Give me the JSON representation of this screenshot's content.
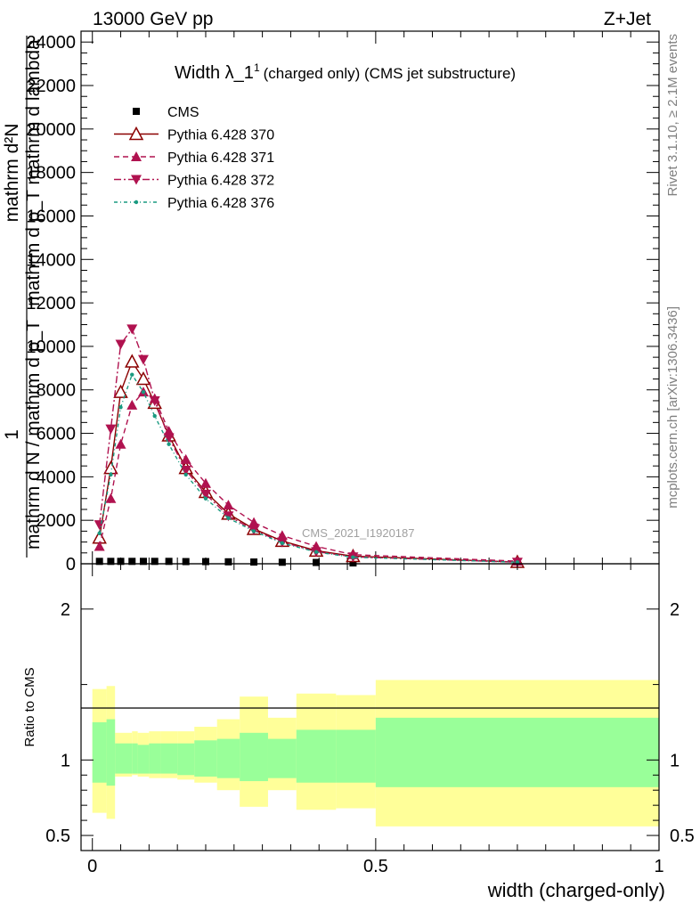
{
  "header": {
    "left": "13000 GeV pp",
    "right": "Z+Jet"
  },
  "side": {
    "rivet": "Rivet 3.1.10, ≥ 2.1M events",
    "mcplots": "mcplots.cern.ch [arXiv:1306.3436]"
  },
  "watermark": "CMS_2021_I1920187",
  "chart_data": [
    {
      "type": "line",
      "title": "Width λ_1",
      "title_sup": "1",
      "title_suffix": "(charged only) (CMS jet substructure)",
      "ylabel_top": "mathrm d²N",
      "ylabel_mid": "mathrm d p_T mathrm d lambda",
      "ylabel_num": "1",
      "ylabel_den": "mathrm d N / mathrm d p_T",
      "ylim": [
        0,
        24500
      ],
      "xlim": [
        -0.02,
        1.0
      ],
      "y_ticks": [
        0,
        2000,
        4000,
        6000,
        8000,
        10000,
        12000,
        14000,
        16000,
        18000,
        20000,
        22000,
        24000
      ],
      "y_tick_labels": [
        "0",
        "2000",
        "4000",
        "6000",
        "8000",
        "10000",
        "12000",
        "14000",
        "16000",
        "18000",
        "20000",
        "22000",
        "24000"
      ],
      "legend_position": "top-left",
      "x": [
        0.0125,
        0.0325,
        0.05,
        0.07,
        0.09,
        0.11,
        0.135,
        0.165,
        0.2,
        0.24,
        0.285,
        0.335,
        0.395,
        0.46,
        0.75
      ],
      "series": [
        {
          "name": "CMS",
          "color": "#000000",
          "marker": "square",
          "values": [
            110,
            110,
            110,
            110,
            110,
            110,
            110,
            100,
            100,
            90,
            80,
            70,
            60,
            40,
            20
          ]
        },
        {
          "name": "Pythia 6.428 370",
          "color": "#8b0000",
          "marker": "triangle-open",
          "dash": "solid",
          "values": [
            1200,
            4400,
            7900,
            9300,
            8500,
            7400,
            5900,
            4400,
            3300,
            2300,
            1600,
            1050,
            600,
            350,
            80
          ]
        },
        {
          "name": "Pythia 6.428 371",
          "color": "#b0124f",
          "marker": "triangle-up",
          "dash": "6,4",
          "values": [
            800,
            3000,
            5500,
            7300,
            7900,
            7600,
            6100,
            4800,
            3700,
            2700,
            1900,
            1300,
            800,
            420,
            120
          ]
        },
        {
          "name": "Pythia 6.428 372",
          "color": "#b0124f",
          "marker": "triangle-down",
          "dash": "8,3,2,3",
          "values": [
            1800,
            6200,
            10100,
            10800,
            9400,
            7500,
            5800,
            4300,
            3200,
            2200,
            1550,
            1000,
            560,
            320,
            70
          ]
        },
        {
          "name": "Pythia 6.428 376",
          "color": "#1a9a80",
          "marker": "dot",
          "dash": "4,3,1,3",
          "values": [
            1400,
            4100,
            7200,
            8700,
            7900,
            6800,
            5500,
            4100,
            3000,
            2100,
            1500,
            950,
            540,
            300,
            70
          ]
        }
      ]
    },
    {
      "type": "area",
      "ylabel": "Ratio to CMS",
      "xlabel": "width (charged-only)",
      "ylim": [
        0.4,
        2.3
      ],
      "y_ticks": [
        0.5,
        1,
        2
      ],
      "y_tick_labels": [
        "0.5",
        "1",
        "2"
      ],
      "x_ticks": [
        0,
        0.5,
        1
      ],
      "x_tick_labels": [
        "0",
        "0.5",
        "1"
      ],
      "bins": [
        {
          "x0": 0.0,
          "x1": 0.025,
          "g_lo": 0.85,
          "g_hi": 1.25,
          "y_lo": 0.65,
          "y_hi": 1.47
        },
        {
          "x0": 0.025,
          "x1": 0.04,
          "g_lo": 0.83,
          "g_hi": 1.27,
          "y_lo": 0.61,
          "y_hi": 1.49
        },
        {
          "x0": 0.04,
          "x1": 0.07,
          "g_lo": 0.91,
          "g_hi": 1.11,
          "y_lo": 0.89,
          "y_hi": 1.18
        },
        {
          "x0": 0.07,
          "x1": 0.08,
          "g_lo": 0.91,
          "g_hi": 1.11,
          "y_lo": 0.9,
          "y_hi": 1.19
        },
        {
          "x0": 0.08,
          "x1": 0.1,
          "g_lo": 0.91,
          "g_hi": 1.1,
          "y_lo": 0.89,
          "y_hi": 1.18
        },
        {
          "x0": 0.1,
          "x1": 0.12,
          "g_lo": 0.91,
          "g_hi": 1.11,
          "y_lo": 0.88,
          "y_hi": 1.19
        },
        {
          "x0": 0.12,
          "x1": 0.15,
          "g_lo": 0.91,
          "g_hi": 1.11,
          "y_lo": 0.88,
          "y_hi": 1.19
        },
        {
          "x0": 0.15,
          "x1": 0.18,
          "g_lo": 0.9,
          "g_hi": 1.11,
          "y_lo": 0.87,
          "y_hi": 1.19
        },
        {
          "x0": 0.18,
          "x1": 0.22,
          "g_lo": 0.89,
          "g_hi": 1.13,
          "y_lo": 0.85,
          "y_hi": 1.22
        },
        {
          "x0": 0.22,
          "x1": 0.26,
          "g_lo": 0.88,
          "g_hi": 1.14,
          "y_lo": 0.8,
          "y_hi": 1.27
        },
        {
          "x0": 0.26,
          "x1": 0.31,
          "g_lo": 0.86,
          "g_hi": 1.18,
          "y_lo": 0.69,
          "y_hi": 1.42
        },
        {
          "x0": 0.31,
          "x1": 0.36,
          "g_lo": 0.88,
          "g_hi": 1.14,
          "y_lo": 0.8,
          "y_hi": 1.28
        },
        {
          "x0": 0.36,
          "x1": 0.43,
          "g_lo": 0.85,
          "g_hi": 1.2,
          "y_lo": 0.67,
          "y_hi": 1.44
        },
        {
          "x0": 0.43,
          "x1": 0.5,
          "g_lo": 0.85,
          "g_hi": 1.2,
          "y_lo": 0.68,
          "y_hi": 1.43
        },
        {
          "x0": 0.5,
          "x1": 1.0,
          "g_lo": 0.82,
          "g_hi": 1.28,
          "y_lo": 0.56,
          "y_hi": 1.53
        }
      ]
    }
  ]
}
